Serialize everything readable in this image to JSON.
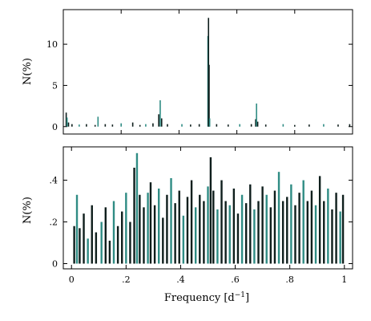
{
  "chart_data": [
    {
      "type": "bar",
      "xlabel": "",
      "ylabel": "N(%)",
      "xlim": [
        0,
        1
      ],
      "ylim": [
        -0.9,
        14.2
      ],
      "yticks": [
        0,
        5,
        10
      ],
      "ytick_labels": [
        "0",
        "5",
        "10"
      ],
      "xticks": [
        0,
        0.2,
        0.4,
        0.6,
        0.8,
        1.0
      ],
      "grid": false,
      "colors": {
        "primary": "#2f8c84",
        "secondary": "#0e1e1c"
      },
      "series": [
        {
          "values": [
            [
              0.01,
              1.7
            ],
            [
              0.013,
              1.1
            ],
            [
              0.018,
              0.5
            ],
            [
              0.03,
              0.3
            ],
            [
              0.055,
              0.25
            ],
            [
              0.08,
              0.3
            ],
            [
              0.11,
              0.2
            ],
            [
              0.12,
              1.2
            ],
            [
              0.145,
              0.3
            ],
            [
              0.17,
              0.25
            ],
            [
              0.2,
              0.4
            ],
            [
              0.24,
              0.5
            ],
            [
              0.265,
              0.2
            ],
            [
              0.285,
              0.3
            ],
            [
              0.31,
              0.4
            ],
            [
              0.33,
              1.5
            ],
            [
              0.335,
              3.2
            ],
            [
              0.34,
              1.0
            ],
            [
              0.36,
              0.3
            ],
            [
              0.41,
              0.3
            ],
            [
              0.44,
              0.25
            ],
            [
              0.47,
              0.3
            ],
            [
              0.5,
              11.0
            ],
            [
              0.502,
              13.2
            ],
            [
              0.504,
              7.5
            ],
            [
              0.506,
              1.0
            ],
            [
              0.53,
              0.3
            ],
            [
              0.57,
              0.25
            ],
            [
              0.61,
              0.3
            ],
            [
              0.65,
              0.3
            ],
            [
              0.665,
              0.9
            ],
            [
              0.668,
              2.8
            ],
            [
              0.672,
              0.6
            ],
            [
              0.7,
              0.25
            ],
            [
              0.76,
              0.3
            ],
            [
              0.8,
              0.2
            ],
            [
              0.85,
              0.25
            ],
            [
              0.9,
              0.3
            ],
            [
              0.95,
              0.25
            ],
            [
              0.99,
              0.3
            ]
          ]
        }
      ]
    },
    {
      "type": "bar",
      "xlabel": "Frequency  [d$^{-1}$]",
      "xlabel_main": "Frequency",
      "xlabel_unit": "d",
      "xlabel_exp": "−1",
      "ylabel": "N(%)",
      "xlim": [
        -0.03,
        1.03
      ],
      "ylim": [
        -0.025,
        0.56
      ],
      "yticks": [
        0,
        0.2,
        0.4
      ],
      "ytick_labels": [
        "0",
        ".2",
        ".4"
      ],
      "xticks": [
        0,
        0.2,
        0.4,
        0.6,
        0.8,
        1.0
      ],
      "xtick_labels": [
        "0",
        ".2",
        ".4",
        ".6",
        ".8",
        "1"
      ],
      "grid": false,
      "colors": {
        "primary": "#2f8c84",
        "secondary": "#0e1e1c"
      },
      "series": [
        {
          "values": [
            [
              0.01,
              0.18
            ],
            [
              0.02,
              0.33
            ],
            [
              0.03,
              0.17
            ],
            [
              0.045,
              0.24
            ],
            [
              0.06,
              0.12
            ],
            [
              0.075,
              0.28
            ],
            [
              0.09,
              0.15
            ],
            [
              0.11,
              0.2
            ],
            [
              0.125,
              0.27
            ],
            [
              0.14,
              0.11
            ],
            [
              0.155,
              0.3
            ],
            [
              0.17,
              0.18
            ],
            [
              0.185,
              0.25
            ],
            [
              0.2,
              0.34
            ],
            [
              0.215,
              0.2
            ],
            [
              0.23,
              0.46
            ],
            [
              0.24,
              0.53
            ],
            [
              0.25,
              0.33
            ],
            [
              0.265,
              0.27
            ],
            [
              0.28,
              0.34
            ],
            [
              0.29,
              0.39
            ],
            [
              0.305,
              0.28
            ],
            [
              0.32,
              0.36
            ],
            [
              0.335,
              0.22
            ],
            [
              0.35,
              0.33
            ],
            [
              0.365,
              0.41
            ],
            [
              0.38,
              0.29
            ],
            [
              0.395,
              0.35
            ],
            [
              0.41,
              0.23
            ],
            [
              0.425,
              0.32
            ],
            [
              0.44,
              0.4
            ],
            [
              0.455,
              0.27
            ],
            [
              0.47,
              0.33
            ],
            [
              0.485,
              0.3
            ],
            [
              0.5,
              0.37
            ],
            [
              0.51,
              0.51
            ],
            [
              0.52,
              0.35
            ],
            [
              0.535,
              0.26
            ],
            [
              0.55,
              0.4
            ],
            [
              0.565,
              0.3
            ],
            [
              0.58,
              0.28
            ],
            [
              0.595,
              0.36
            ],
            [
              0.61,
              0.24
            ],
            [
              0.625,
              0.33
            ],
            [
              0.64,
              0.29
            ],
            [
              0.655,
              0.38
            ],
            [
              0.67,
              0.26
            ],
            [
              0.685,
              0.3
            ],
            [
              0.7,
              0.37
            ],
            [
              0.715,
              0.33
            ],
            [
              0.73,
              0.27
            ],
            [
              0.745,
              0.35
            ],
            [
              0.76,
              0.44
            ],
            [
              0.775,
              0.3
            ],
            [
              0.79,
              0.32
            ],
            [
              0.805,
              0.38
            ],
            [
              0.82,
              0.28
            ],
            [
              0.835,
              0.34
            ],
            [
              0.85,
              0.4
            ],
            [
              0.865,
              0.3
            ],
            [
              0.88,
              0.35
            ],
            [
              0.895,
              0.28
            ],
            [
              0.91,
              0.42
            ],
            [
              0.925,
              0.3
            ],
            [
              0.94,
              0.36
            ],
            [
              0.955,
              0.26
            ],
            [
              0.97,
              0.34
            ],
            [
              0.985,
              0.25
            ],
            [
              0.995,
              0.33
            ]
          ]
        }
      ]
    }
  ]
}
